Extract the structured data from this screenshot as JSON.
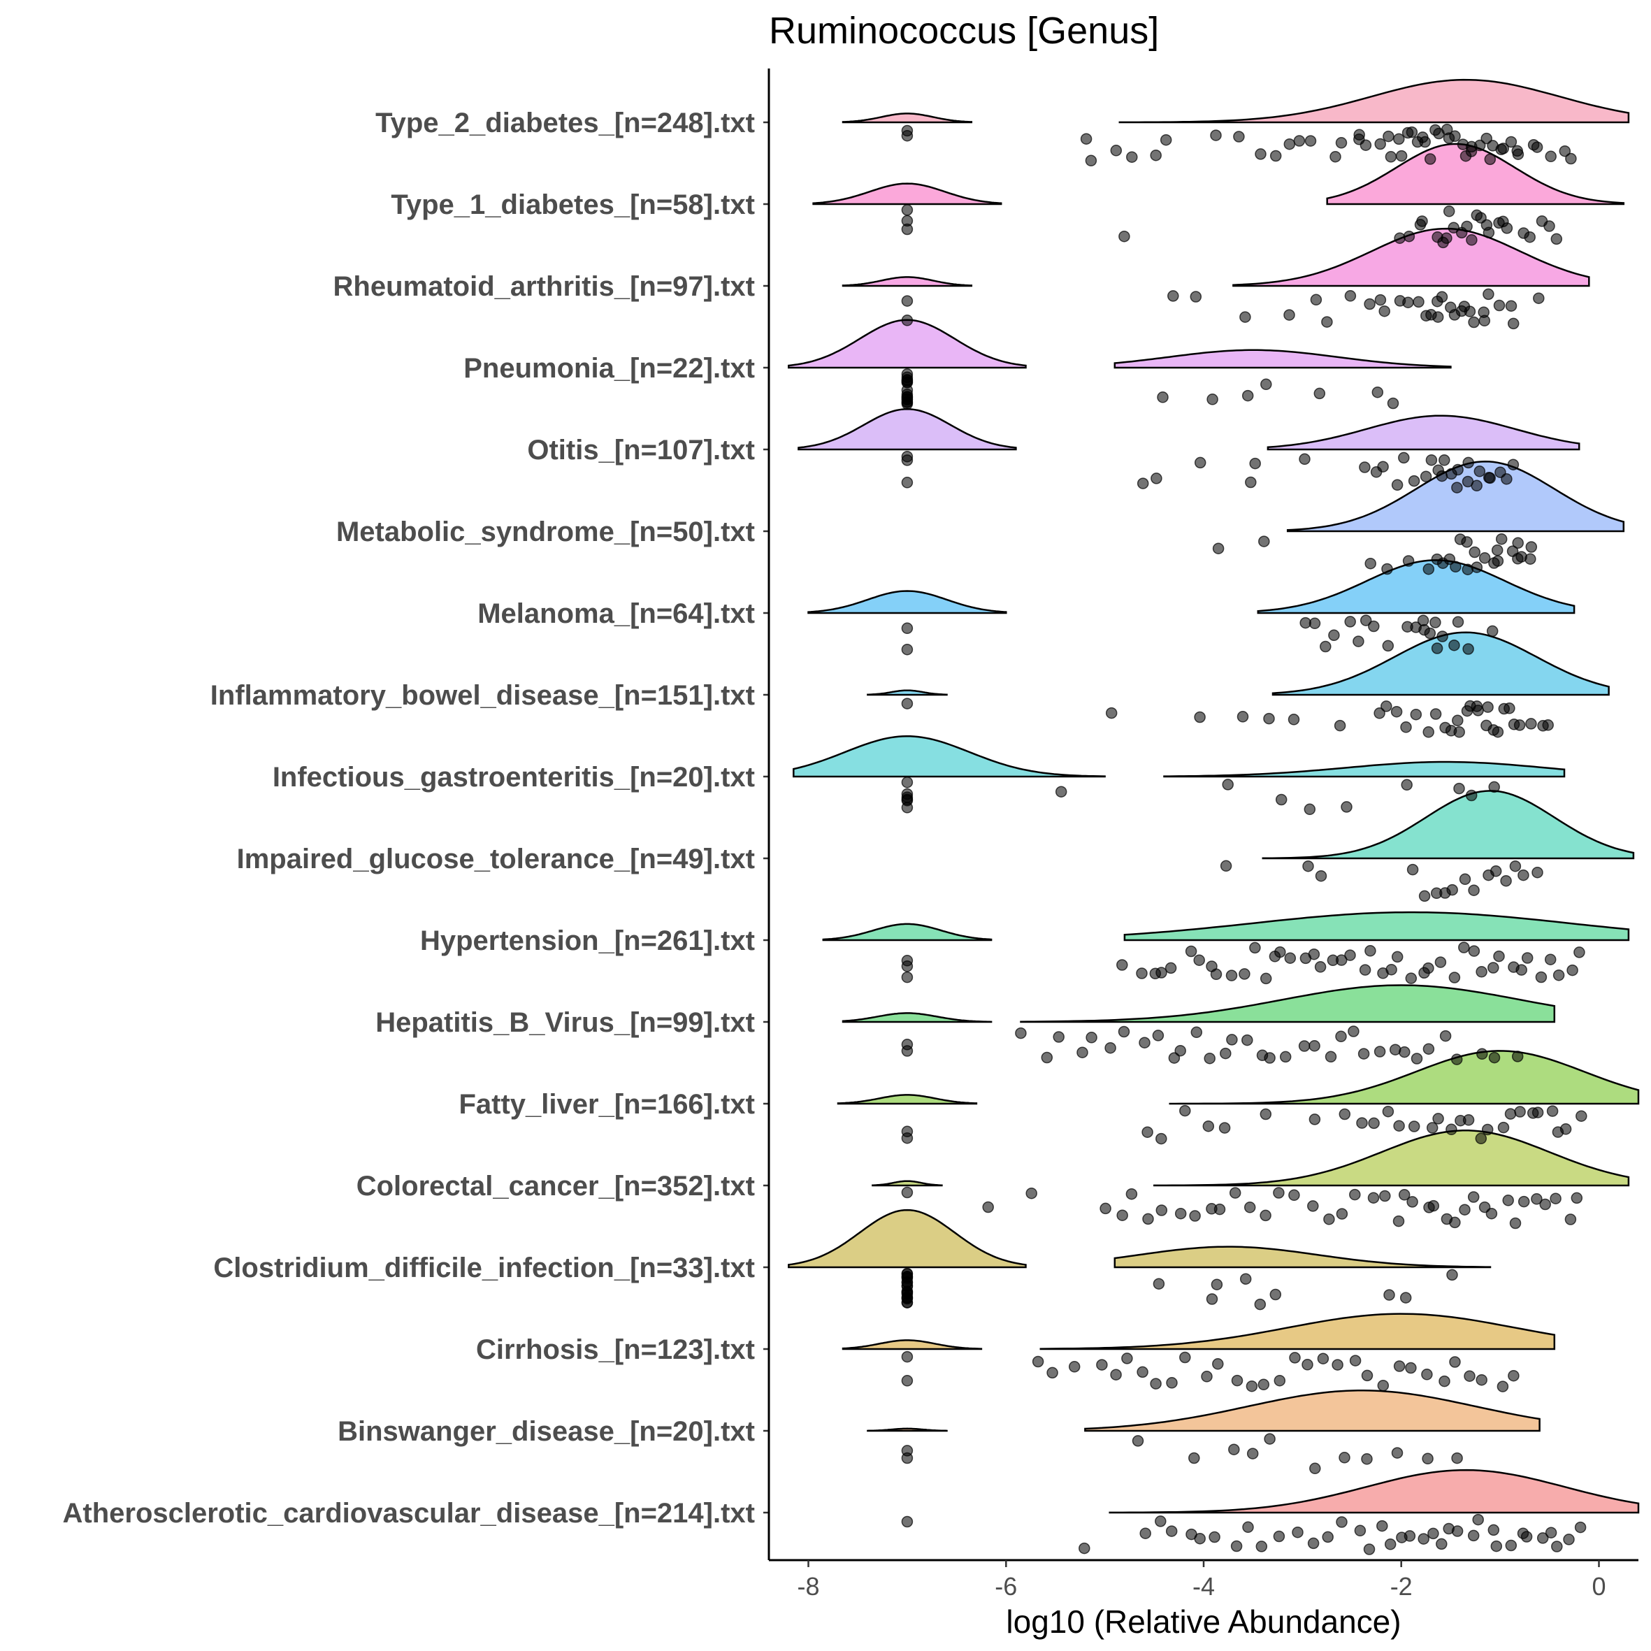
{
  "chart_data": {
    "type": "raincloud",
    "title": "Ruminococcus [Genus]",
    "xlabel": "log10 (Relative Abundance)",
    "ylabel": "",
    "xlim": [
      -8.4,
      0.4
    ],
    "x_ticks": [
      -8,
      -6,
      -4,
      -2,
      0
    ],
    "x_tick_labels": [
      "-8",
      "-6",
      "-4",
      "-2",
      "0"
    ],
    "grid": false,
    "legend": "none",
    "zero_value": -7,
    "groups": [
      {
        "label": "Type_2_diabetes_[n=248].txt",
        "color": "#F8B4C6",
        "zero_fraction": 0.07,
        "zero_density": {
          "lo": -7.65,
          "hi": -6.35,
          "height": 0.12
        },
        "density": {
          "lo": -4.85,
          "hi": 0.3,
          "peak": -1.35,
          "sd": 0.95,
          "height": 0.58
        },
        "sample": [
          -5.2,
          -5.15,
          -4.9,
          -4.7,
          -4.5,
          -4.4,
          -3.9,
          -3.65,
          -3.4,
          -3.3,
          -3.1,
          -3.05,
          -2.9,
          -2.7,
          -2.6,
          -2.45,
          -2.4,
          -2.35,
          -2.25,
          -2.15,
          -2.1,
          -2.05,
          -2.0,
          -1.95,
          -1.9,
          -1.85,
          -1.8,
          -1.75,
          -1.7,
          -1.65,
          -1.6,
          -1.55,
          -1.5,
          -1.45,
          -1.4,
          -1.35,
          -1.3,
          -1.25,
          -1.2,
          -1.15,
          -1.1,
          -1.05,
          -1.0,
          -0.95,
          -0.9,
          -0.85,
          -0.8,
          -0.7,
          -0.6,
          -0.5,
          -0.35,
          -0.25
        ]
      },
      {
        "label": "Type_1_diabetes_[n=58].txt",
        "color": "#FBA3D8",
        "zero_fraction": 0.09,
        "zero_density": {
          "lo": -7.95,
          "hi": -6.05,
          "height": 0.28
        },
        "density": {
          "lo": -2.75,
          "hi": 0.25,
          "peak": -1.45,
          "sd": 0.6,
          "height": 0.82
        },
        "sample": [
          -4.8,
          -2.0,
          -1.9,
          -1.8,
          -1.75,
          -1.65,
          -1.6,
          -1.55,
          -1.5,
          -1.45,
          -1.4,
          -1.35,
          -1.3,
          -1.25,
          -1.2,
          -1.15,
          -1.1,
          -1.0,
          -0.95,
          -0.9,
          -0.8,
          -0.7,
          -0.6,
          -0.5,
          -0.4
        ]
      },
      {
        "label": "Rheumatoid_arthritis_[n=97].txt",
        "color": "#F7A3E3",
        "zero_fraction": 0.06,
        "zero_density": {
          "lo": -7.65,
          "hi": -6.35,
          "height": 0.12
        },
        "density": {
          "lo": -3.7,
          "hi": -0.1,
          "peak": -1.55,
          "sd": 0.75,
          "height": 0.78
        },
        "sample": [
          -4.3,
          -4.05,
          -3.55,
          -3.15,
          -2.85,
          -2.75,
          -2.5,
          -2.35,
          -2.25,
          -2.15,
          -2.05,
          -1.95,
          -1.85,
          -1.75,
          -1.7,
          -1.65,
          -1.6,
          -1.55,
          -1.5,
          -1.45,
          -1.4,
          -1.35,
          -1.3,
          -1.25,
          -1.2,
          -1.15,
          -1.1,
          -1.0,
          -0.9,
          -0.85,
          -0.6
        ]
      },
      {
        "label": "Pneumonia_[n=22].txt",
        "color": "#E8B2F6",
        "zero_fraction": 0.5,
        "zero_density": {
          "lo": -8.2,
          "hi": -5.8,
          "height": 0.65
        },
        "density": {
          "lo": -4.9,
          "hi": -1.5,
          "peak": -3.5,
          "sd": 0.85,
          "height": 0.24
        },
        "sample": [
          -4.45,
          -3.95,
          -3.55,
          -3.4,
          -2.85,
          -2.25,
          -2.05
        ]
      },
      {
        "label": "Otitis_[n=107].txt",
        "color": "#D9BAF8",
        "zero_fraction": 0.1,
        "zero_density": {
          "lo": -8.1,
          "hi": -5.9,
          "height": 0.55
        },
        "density": {
          "lo": -3.35,
          "hi": -0.2,
          "peak": -1.6,
          "sd": 0.75,
          "height": 0.46
        },
        "sample": [
          -4.6,
          -4.5,
          -4.05,
          -3.55,
          -3.5,
          -2.95,
          -2.35,
          -2.25,
          -2.15,
          -2.05,
          -1.95,
          -1.85,
          -1.75,
          -1.7,
          -1.65,
          -1.6,
          -1.55,
          -1.5,
          -1.45,
          -1.4,
          -1.35,
          -1.3,
          -1.25,
          -1.2,
          -1.15,
          -1.1,
          -1.0,
          -0.95,
          -0.85
        ]
      },
      {
        "label": "Metabolic_syndrome_[n=50].txt",
        "color": "#ADC6FB",
        "zero_fraction": 0.0,
        "zero_density": null,
        "density": {
          "lo": -3.15,
          "hi": 0.25,
          "peak": -1.15,
          "sd": 0.7,
          "height": 0.95
        },
        "sample": [
          -3.85,
          -3.35,
          -2.35,
          -2.15,
          -1.95,
          -1.75,
          -1.65,
          -1.55,
          -1.5,
          -1.45,
          -1.4,
          -1.35,
          -1.3,
          -1.25,
          -1.2,
          -1.15,
          -1.1,
          -1.05,
          -1.0,
          -0.95,
          -0.9,
          -0.85,
          -0.8,
          -0.75,
          -0.7,
          -0.65
        ]
      },
      {
        "label": "Melanoma_[n=64].txt",
        "color": "#7DCEF8",
        "zero_fraction": 0.08,
        "zero_density": {
          "lo": -8.0,
          "hi": -6.0,
          "height": 0.3
        },
        "density": {
          "lo": -3.45,
          "hi": -0.25,
          "peak": -1.65,
          "sd": 0.7,
          "height": 0.72
        },
        "sample": [
          -2.95,
          -2.85,
          -2.75,
          -2.65,
          -2.55,
          -2.45,
          -2.35,
          -2.25,
          -2.15,
          -1.95,
          -1.85,
          -1.8,
          -1.75,
          -1.7,
          -1.65,
          -1.6,
          -1.55,
          -1.5,
          -1.4,
          -1.3,
          -1.1
        ]
      },
      {
        "label": "Inflammatory_bowel_disease_[n=151].txt",
        "color": "#7DD4EE",
        "zero_fraction": 0.03,
        "zero_density": {
          "lo": -7.4,
          "hi": -6.6,
          "height": 0.06
        },
        "density": {
          "lo": -3.3,
          "hi": 0.1,
          "peak": -1.35,
          "sd": 0.72,
          "height": 0.85
        },
        "sample": [
          -4.9,
          -4.05,
          -3.6,
          -3.35,
          -3.05,
          -2.65,
          -2.25,
          -2.15,
          -2.05,
          -1.95,
          -1.85,
          -1.75,
          -1.65,
          -1.55,
          -1.5,
          -1.45,
          -1.4,
          -1.35,
          -1.3,
          -1.25,
          -1.2,
          -1.15,
          -1.1,
          -1.05,
          -1.0,
          -0.95,
          -0.9,
          -0.85,
          -0.8,
          -0.7,
          -0.6,
          -0.5
        ]
      },
      {
        "label": "Infectious_gastroenteritis_[n=20].txt",
        "color": "#80DDDF",
        "zero_fraction": 0.2,
        "zero_density": {
          "lo": -8.15,
          "hi": -5.0,
          "height": 0.55
        },
        "density": {
          "lo": -4.4,
          "hi": -0.35,
          "peak": -1.55,
          "sd": 1.0,
          "height": 0.2
        },
        "sample": [
          -5.45,
          -3.75,
          -3.25,
          -2.95,
          -2.55,
          -1.95,
          -1.45,
          -1.25,
          -1.05
        ]
      },
      {
        "label": "Impaired_glucose_tolerance_[n=49].txt",
        "color": "#7EE0CC",
        "zero_fraction": 0.0,
        "zero_density": null,
        "density": {
          "lo": -3.4,
          "hi": 0.35,
          "peak": -1.1,
          "sd": 0.65,
          "height": 0.92
        },
        "sample": [
          -3.8,
          -2.95,
          -2.8,
          -1.85,
          -1.75,
          -1.65,
          -1.55,
          -1.45,
          -1.35,
          -1.25,
          -1.15,
          -1.05,
          -0.95,
          -0.85,
          -0.75,
          -0.65
        ]
      },
      {
        "label": "Hypertension_[n=261].txt",
        "color": "#80E0B3",
        "zero_fraction": 0.1,
        "zero_density": {
          "lo": -7.85,
          "hi": -6.15,
          "height": 0.22
        },
        "density": {
          "lo": -4.8,
          "hi": 0.3,
          "peak": -1.9,
          "sd": 1.6,
          "height": 0.38
        },
        "sample": [
          -4.8,
          -4.65,
          -4.5,
          -4.4,
          -4.3,
          -4.15,
          -4.05,
          -3.95,
          -3.85,
          -3.7,
          -3.6,
          -3.5,
          -3.4,
          -3.3,
          -3.2,
          -3.1,
          -3.0,
          -2.9,
          -2.8,
          -2.7,
          -2.6,
          -2.5,
          -2.4,
          -2.3,
          -2.2,
          -2.1,
          -2.0,
          -1.9,
          -1.8,
          -1.7,
          -1.6,
          -1.5,
          -1.4,
          -1.3,
          -1.2,
          -1.1,
          -1.0,
          -0.9,
          -0.8,
          -0.7,
          -0.6,
          -0.5,
          -0.4,
          -0.3,
          -0.2
        ]
      },
      {
        "label": "Hepatitis_B_Virus_[n=99].txt",
        "color": "#84DE95",
        "zero_fraction": 0.05,
        "zero_density": {
          "lo": -7.65,
          "hi": -6.15,
          "height": 0.12
        },
        "density": {
          "lo": -5.85,
          "hi": -0.45,
          "peak": -2.0,
          "sd": 1.2,
          "height": 0.5
        },
        "sample": [
          -5.85,
          -5.6,
          -5.5,
          -5.25,
          -5.1,
          -4.95,
          -4.8,
          -4.6,
          -4.45,
          -4.3,
          -4.2,
          -4.1,
          -3.95,
          -3.8,
          -3.7,
          -3.55,
          -3.4,
          -3.3,
          -3.15,
          -3.0,
          -2.9,
          -2.75,
          -2.6,
          -2.45,
          -2.35,
          -2.2,
          -2.05,
          -1.95,
          -1.85,
          -1.7,
          -1.55,
          -1.4,
          -1.2,
          -1.05,
          -0.85
        ]
      },
      {
        "label": "Fatty_liver_[n=166].txt",
        "color": "#A9DA78",
        "zero_fraction": 0.06,
        "zero_density": {
          "lo": -7.7,
          "hi": -6.3,
          "height": 0.12
        },
        "density": {
          "lo": -4.35,
          "hi": 0.4,
          "peak": -1.0,
          "sd": 0.85,
          "height": 0.72
        },
        "sample": [
          -4.6,
          -4.45,
          -4.15,
          -3.95,
          -3.75,
          -3.35,
          -2.9,
          -2.6,
          -2.4,
          -2.25,
          -2.15,
          -2.0,
          -1.85,
          -1.7,
          -1.6,
          -1.5,
          -1.4,
          -1.3,
          -1.2,
          -1.1,
          -1.0,
          -0.9,
          -0.8,
          -0.7,
          -0.6,
          -0.5,
          -0.4,
          -0.3,
          -0.2
        ]
      },
      {
        "label": "Colorectal_cancer_[n=352].txt",
        "color": "#C6D87C",
        "zero_fraction": 0.03,
        "zero_density": {
          "lo": -7.35,
          "hi": -6.65,
          "height": 0.06
        },
        "density": {
          "lo": -4.5,
          "hi": 0.3,
          "peak": -1.35,
          "sd": 0.85,
          "height": 0.75
        },
        "sample": [
          -6.15,
          -5.75,
          -5.0,
          -4.85,
          -4.7,
          -4.55,
          -4.4,
          -4.25,
          -4.1,
          -3.95,
          -3.8,
          -3.65,
          -3.5,
          -3.35,
          -3.2,
          -3.05,
          -2.9,
          -2.75,
          -2.6,
          -2.45,
          -2.3,
          -2.15,
          -2.05,
          -1.95,
          -1.85,
          -1.75,
          -1.65,
          -1.55,
          -1.45,
          -1.35,
          -1.25,
          -1.15,
          -1.05,
          -0.95,
          -0.85,
          -0.75,
          -0.65,
          -0.55,
          -0.45,
          -0.3,
          -0.2
        ]
      },
      {
        "label": "Clostridium_difficile_infection_[n=33].txt",
        "color": "#D9CB7E",
        "zero_fraction": 0.6,
        "zero_density": {
          "lo": -8.2,
          "hi": -5.8,
          "height": 0.78
        },
        "density": {
          "lo": -4.9,
          "hi": -1.1,
          "peak": -3.75,
          "sd": 0.9,
          "height": 0.28
        },
        "sample": [
          -4.45,
          -3.95,
          -3.9,
          -3.55,
          -3.45,
          -3.3,
          -2.1,
          -1.95,
          -1.5
        ]
      },
      {
        "label": "Cirrhosis_[n=123].txt",
        "color": "#E6C67E",
        "zero_fraction": 0.05,
        "zero_density": {
          "lo": -7.65,
          "hi": -6.25,
          "height": 0.12
        },
        "density": {
          "lo": -5.65,
          "hi": -0.45,
          "peak": -2.0,
          "sd": 1.15,
          "height": 0.48
        },
        "sample": [
          -5.65,
          -5.5,
          -5.3,
          -5.05,
          -4.9,
          -4.75,
          -4.6,
          -4.45,
          -4.3,
          -4.15,
          -4.0,
          -3.85,
          -3.7,
          -3.55,
          -3.4,
          -3.25,
          -3.1,
          -2.95,
          -2.8,
          -2.65,
          -2.5,
          -2.35,
          -2.2,
          -2.05,
          -1.9,
          -1.75,
          -1.6,
          -1.45,
          -1.3,
          -1.15,
          -0.95,
          -0.9
        ]
      },
      {
        "label": "Binswanger_disease_[n=20].txt",
        "color": "#F2C295",
        "zero_fraction": 0.05,
        "zero_density": {
          "lo": -7.4,
          "hi": -6.6,
          "height": 0.03
        },
        "density": {
          "lo": -5.2,
          "hi": -0.6,
          "peak": -2.4,
          "sd": 1.15,
          "height": 0.55
        },
        "sample": [
          -4.7,
          -4.1,
          -3.7,
          -3.5,
          -3.3,
          -2.85,
          -2.55,
          -2.35,
          -2.05,
          -1.75,
          -1.4
        ]
      },
      {
        "label": "Atherosclerotic_cardiovascular_disease_[n=214].txt",
        "color": "#F7A8A8",
        "zero_fraction": 0.04,
        "zero_density": null,
        "density": {
          "lo": -4.95,
          "hi": 0.4,
          "peak": -1.35,
          "sd": 1.0,
          "height": 0.58
        },
        "sample": [
          -5.2,
          -4.6,
          -4.45,
          -4.3,
          -4.15,
          -4.0,
          -3.85,
          -3.7,
          -3.55,
          -3.4,
          -3.25,
          -3.05,
          -2.9,
          -2.75,
          -2.6,
          -2.45,
          -2.3,
          -2.2,
          -2.1,
          -2.0,
          -1.9,
          -1.8,
          -1.7,
          -1.6,
          -1.5,
          -1.4,
          -1.3,
          -1.2,
          -1.1,
          -1.0,
          -0.9,
          -0.8,
          -0.7,
          -0.6,
          -0.5,
          -0.4,
          -0.3,
          -0.2
        ]
      }
    ]
  }
}
